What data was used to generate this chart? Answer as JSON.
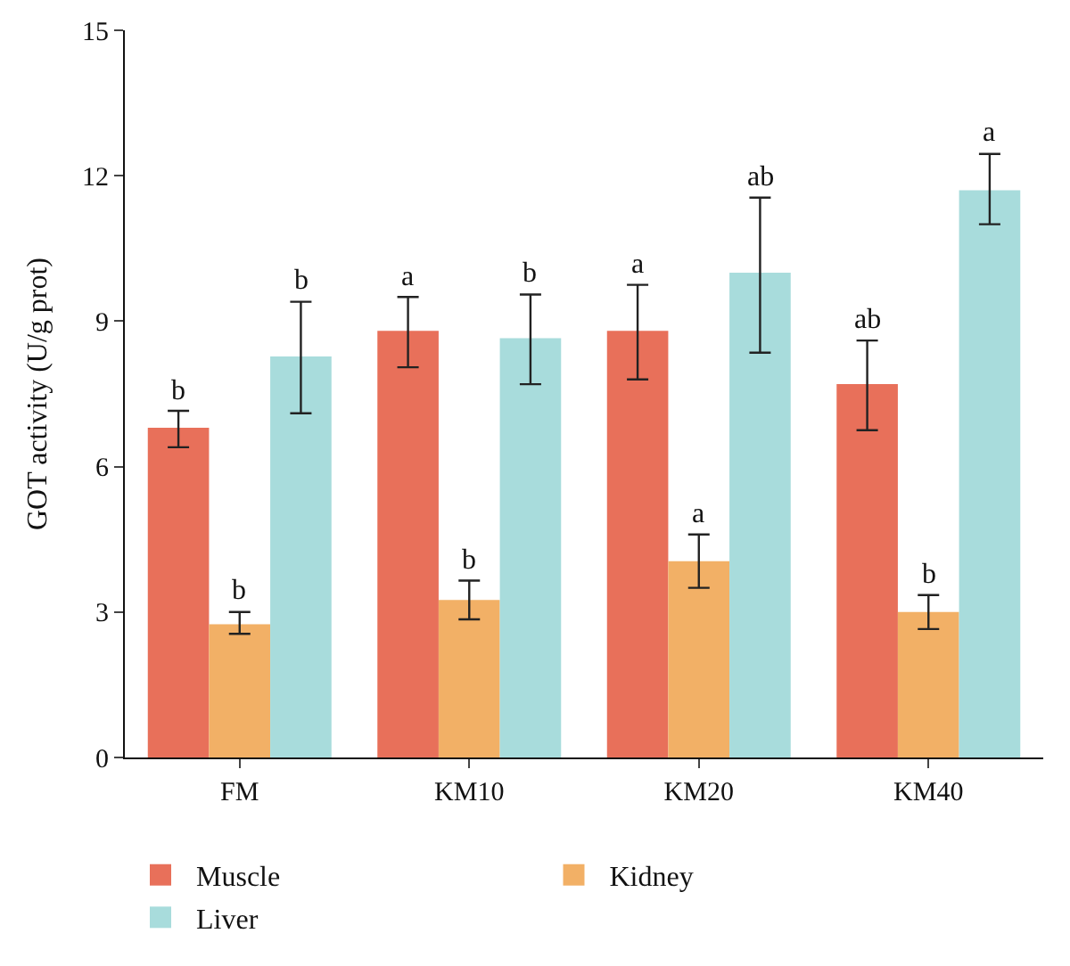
{
  "chart_data": {
    "type": "bar",
    "ylabel": "GOT activity (U/g prot)",
    "categories": [
      "FM",
      "KM10",
      "KM20",
      "KM40"
    ],
    "ylim": [
      0,
      15
    ],
    "yticks": [
      0,
      3,
      6,
      9,
      12,
      15
    ],
    "legend": "bottom",
    "series": [
      {
        "name": "Muscle",
        "color": "#e8705a",
        "values": [
          6.8,
          8.8,
          8.8,
          7.7
        ],
        "errors": [
          [
            6.4,
            7.15
          ],
          [
            8.05,
            9.5
          ],
          [
            7.8,
            9.75
          ],
          [
            6.75,
            8.6
          ]
        ],
        "value_labels": [
          "b",
          "a",
          "a",
          "ab"
        ]
      },
      {
        "name": "Kidney",
        "color": "#f2b066",
        "values": [
          2.75,
          3.25,
          4.05,
          3.0
        ],
        "errors": [
          [
            2.55,
            3.0
          ],
          [
            2.85,
            3.65
          ],
          [
            3.5,
            4.6
          ],
          [
            2.65,
            3.35
          ]
        ],
        "value_labels": [
          "b",
          "b",
          "a",
          "b"
        ]
      },
      {
        "name": "Liver",
        "color": "#a8dcdc",
        "values": [
          8.27,
          8.65,
          10.0,
          11.7
        ],
        "errors": [
          [
            7.1,
            9.4
          ],
          [
            7.7,
            9.55
          ],
          [
            8.35,
            11.55
          ],
          [
            11.0,
            12.45
          ]
        ],
        "value_labels": [
          "b",
          "b",
          "ab",
          "a"
        ]
      }
    ]
  }
}
